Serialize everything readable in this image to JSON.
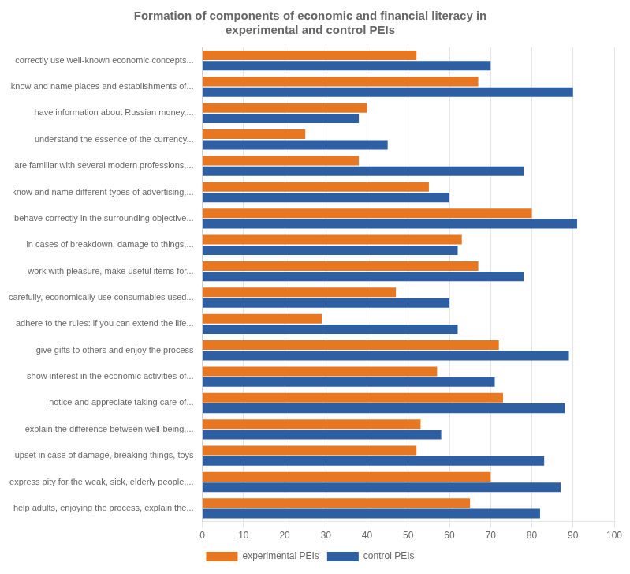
{
  "chart_data": {
    "type": "bar",
    "orientation": "horizontal",
    "title": "Formation of components of economic and financial literacy in\nexperimental and control PEIs",
    "categories": [
      "correctly use well-known economic concepts...",
      "know and name places and establishments of...",
      "have information about Russian money,...",
      "understand the essence of the currency...",
      "are familiar with several modern professions,...",
      "know and name different types of advertising,...",
      "behave correctly in the surrounding objective...",
      "in cases of breakdown, damage to things,...",
      "work with pleasure, make useful items for...",
      "carefully, economically use consumables used...",
      "adhere to the rules: if you can extend the life...",
      "give gifts to others and enjoy the process",
      "show interest in the economic activities of...",
      "notice and appreciate taking care of...",
      "explain the difference between well-being,...",
      "upset in case of damage, breaking things, toys",
      "express pity for the weak, sick, elderly people,...",
      "help adults, enjoying the process, explain the..."
    ],
    "series": [
      {
        "name": "experimental PEIs",
        "color": "#E87722",
        "values": [
          52,
          67,
          40,
          25,
          38,
          55,
          80,
          63,
          67,
          47,
          29,
          72,
          57,
          73,
          53,
          52,
          70,
          65
        ]
      },
      {
        "name": "control PEIs",
        "color": "#2E5FA3",
        "values": [
          70,
          90,
          38,
          45,
          78,
          60,
          91,
          62,
          78,
          60,
          62,
          89,
          71,
          88,
          58,
          83,
          87,
          82
        ]
      }
    ],
    "xlim": [
      0,
      100
    ],
    "xticks": [
      0,
      10,
      20,
      30,
      40,
      50,
      60,
      70,
      80,
      90,
      100
    ],
    "grid": true,
    "legend": "bottom"
  }
}
